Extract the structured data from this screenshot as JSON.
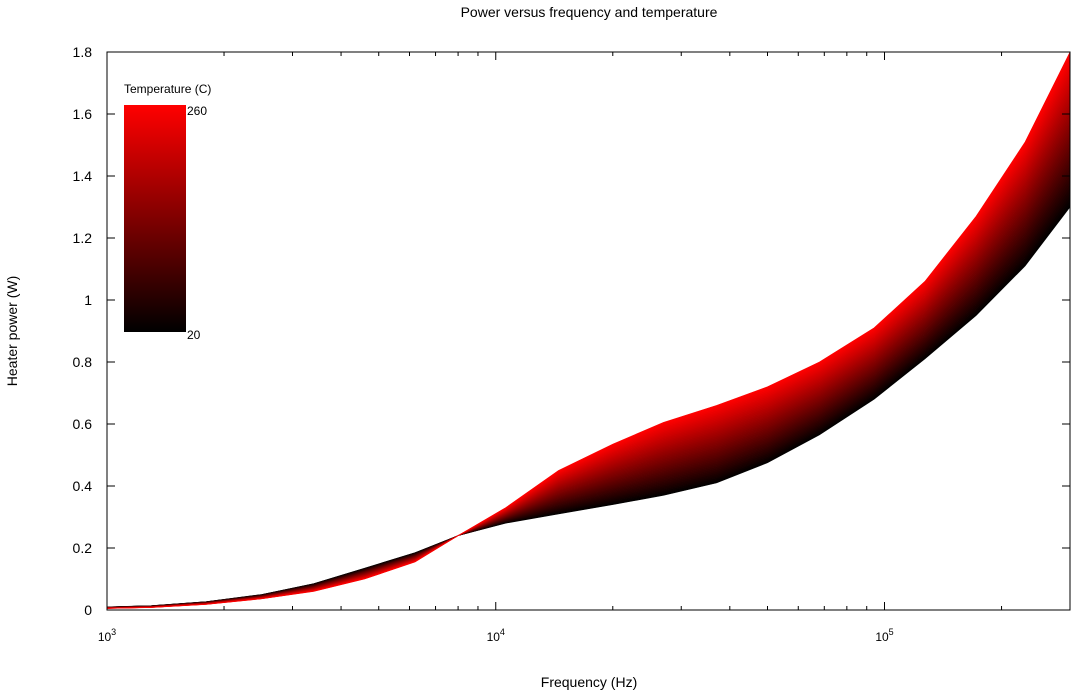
{
  "chart_data": {
    "type": "area",
    "title": "Power versus frequency and temperature",
    "xlabel": "Frequency (Hz)",
    "ylabel": "Heater power (W)",
    "x_scale": "log",
    "xlim": [
      1000,
      300000
    ],
    "ylim": [
      0,
      1.8
    ],
    "x_ticks": [
      {
        "value": 1000,
        "base": "10",
        "exp": "3"
      },
      {
        "value": 10000,
        "base": "10",
        "exp": "4"
      },
      {
        "value": 100000,
        "base": "10",
        "exp": "5"
      }
    ],
    "y_ticks": [
      {
        "value": 0,
        "label": "0"
      },
      {
        "value": 0.2,
        "label": "0.2"
      },
      {
        "value": 0.4,
        "label": "0.4"
      },
      {
        "value": 0.6,
        "label": "0.6"
      },
      {
        "value": 0.8,
        "label": "0.8"
      },
      {
        "value": 1,
        "label": "1"
      },
      {
        "value": 1.2,
        "label": "1.2"
      },
      {
        "value": 1.4,
        "label": "1.4"
      },
      {
        "value": 1.6,
        "label": "1.6"
      },
      {
        "value": 1.8,
        "label": "1.8"
      }
    ],
    "grid": false,
    "legend": {
      "placement": "top-left",
      "title": "Temperature (C)",
      "max_label": "260",
      "min_label": "20",
      "min_value": 20,
      "max_value": 260
    },
    "colors": {
      "low": "#000000",
      "high": "#ff0000"
    },
    "x": [
      1000,
      1300,
      1800,
      2500,
      3400,
      4600,
      6200,
      8000,
      10600,
      14500,
      20000,
      27000,
      37000,
      50000,
      68000,
      94000,
      127000,
      172000,
      230000,
      300000
    ],
    "series": [
      {
        "temperature": 20,
        "values": [
          0.01,
          0.014,
          0.027,
          0.05,
          0.085,
          0.135,
          0.185,
          0.24,
          0.28,
          0.31,
          0.34,
          0.37,
          0.41,
          0.475,
          0.565,
          0.68,
          0.81,
          0.95,
          1.11,
          1.3
        ]
      },
      {
        "temperature": 260,
        "values": [
          0.005,
          0.008,
          0.018,
          0.036,
          0.06,
          0.1,
          0.155,
          0.24,
          0.33,
          0.45,
          0.535,
          0.605,
          0.66,
          0.72,
          0.8,
          0.91,
          1.06,
          1.27,
          1.51,
          1.8
        ]
      }
    ]
  }
}
